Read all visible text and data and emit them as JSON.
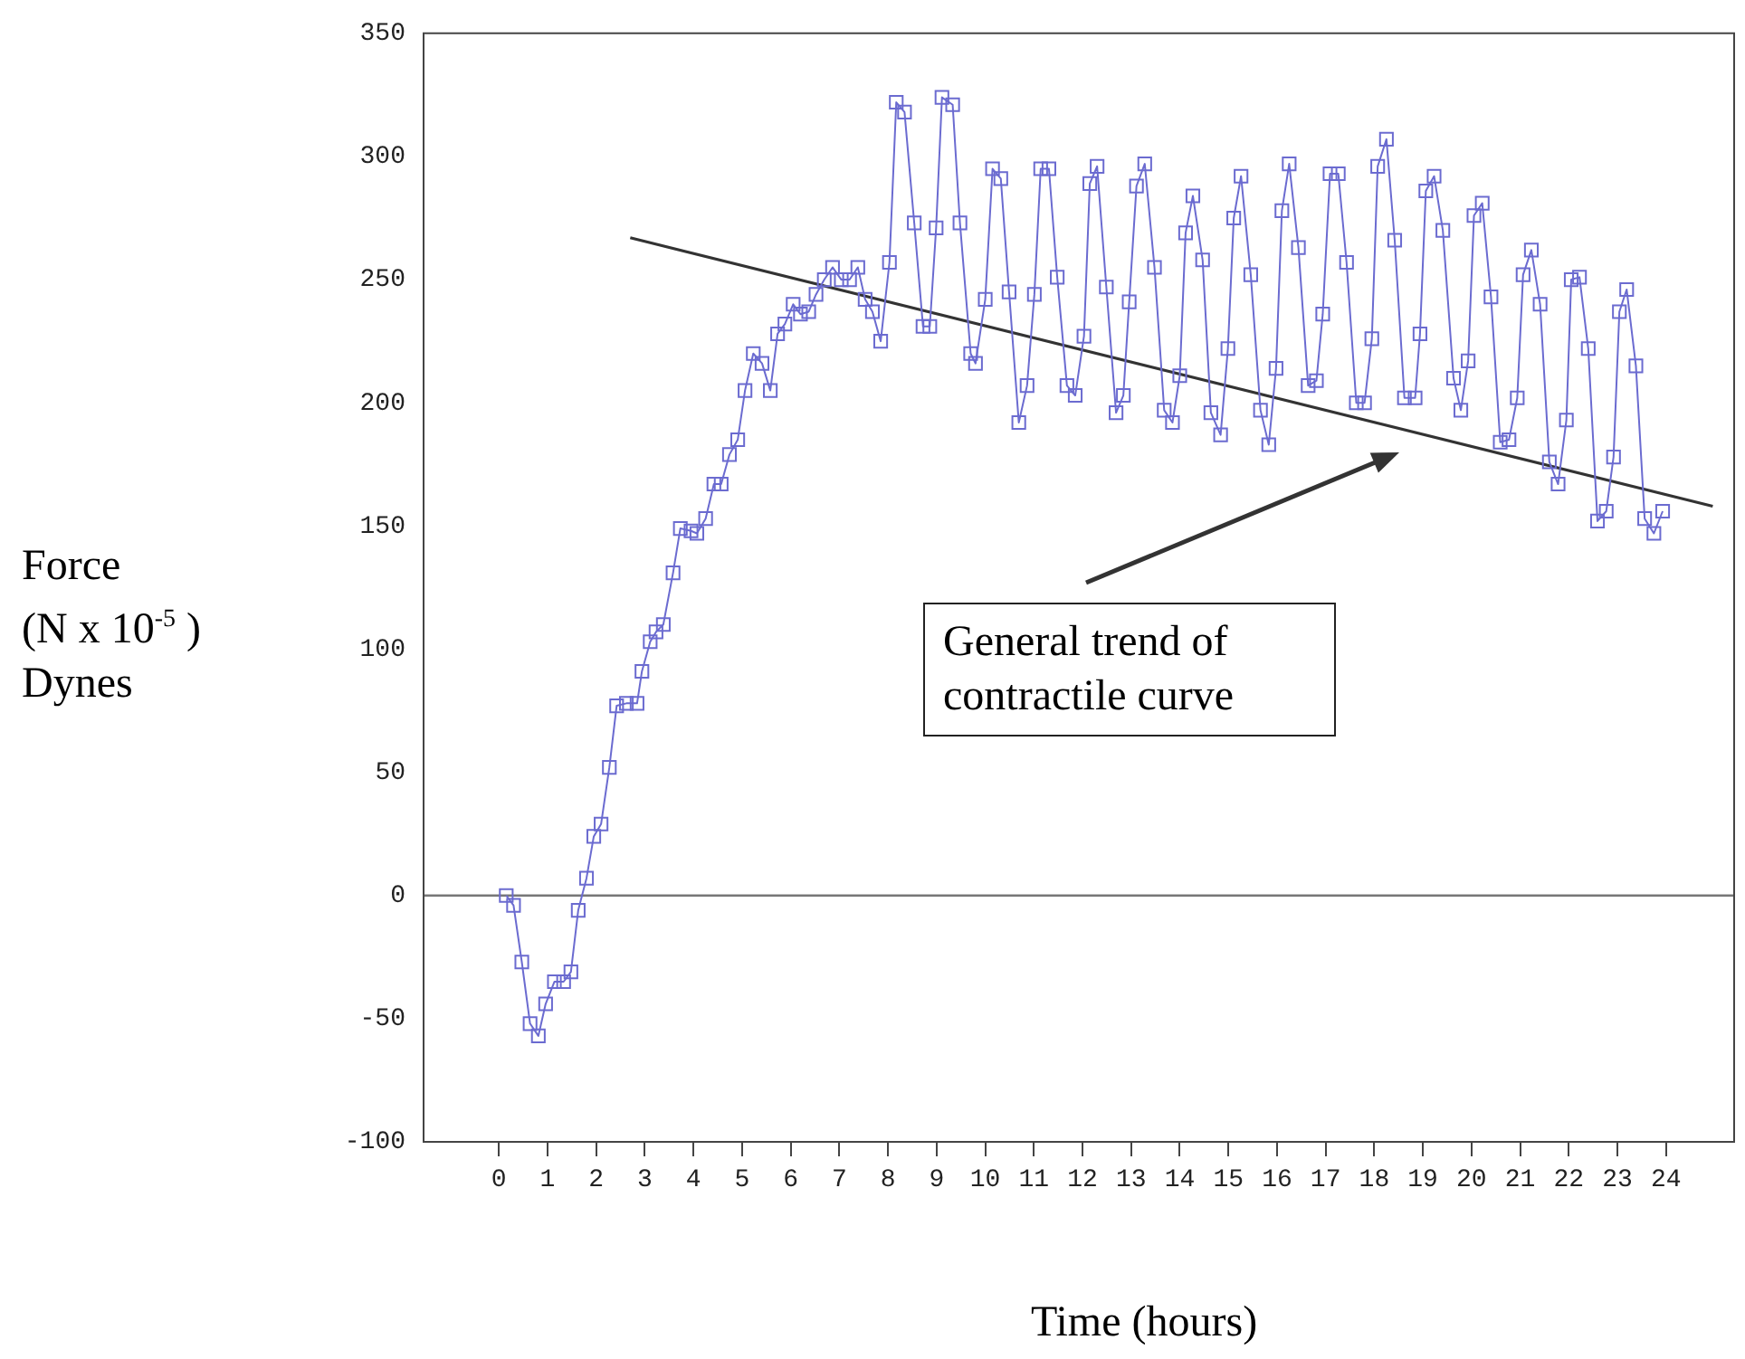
{
  "chart_data": {
    "type": "line",
    "xlabel": "Time (hours)",
    "ylabel": "Force\n(N x 10$^{-5}$ )\nDynes",
    "xlim": [
      -1.55,
      25.4
    ],
    "xticks": [
      0,
      1,
      2,
      3,
      4,
      5,
      6,
      7,
      8,
      9,
      10,
      11,
      12,
      13,
      14,
      15,
      16,
      17,
      18,
      19,
      20,
      21,
      22,
      23,
      24
    ],
    "ylim": [
      -100,
      350
    ],
    "yticks": [
      -100,
      -50,
      0,
      50,
      100,
      150,
      200,
      250,
      300,
      350
    ],
    "grid": false,
    "legend": false,
    "ref_lines": [
      {
        "axis": "y",
        "value": 0,
        "color": "#777777"
      }
    ],
    "annotations": [
      "General trend of contractile curve"
    ],
    "series": [
      {
        "color": "#6b6bd0",
        "marker": "square",
        "x": [
          0.15,
          0.3,
          0.47,
          0.64,
          0.81,
          0.96,
          1.14,
          1.33,
          1.48,
          1.63,
          1.8,
          1.95,
          2.1,
          2.27,
          2.42,
          2.62,
          2.84,
          2.94,
          3.11,
          3.23,
          3.38,
          3.58,
          3.73,
          3.95,
          4.07,
          4.25,
          4.42,
          4.57,
          4.74,
          4.91,
          5.06,
          5.23,
          5.41,
          5.58,
          5.73,
          5.88,
          6.05,
          6.2,
          6.37,
          6.52,
          6.69,
          6.86,
          7.04,
          7.21,
          7.38,
          7.53,
          7.68,
          7.85,
          8.03,
          8.17,
          8.34,
          8.54,
          8.72,
          8.86,
          8.99,
          9.11,
          9.33,
          9.48,
          9.7,
          9.8,
          10.0,
          10.15,
          10.32,
          10.49,
          10.69,
          10.86,
          11.01,
          11.14,
          11.31,
          11.48,
          11.68,
          11.85,
          12.03,
          12.15,
          12.3,
          12.49,
          12.69,
          12.84,
          12.96,
          13.11,
          13.28,
          13.48,
          13.68,
          13.85,
          14.0,
          14.12,
          14.27,
          14.47,
          14.64,
          14.84,
          14.99,
          15.11,
          15.26,
          15.46,
          15.66,
          15.83,
          15.98,
          16.1,
          16.25,
          16.44,
          16.64,
          16.81,
          16.94,
          17.09,
          17.26,
          17.43,
          17.63,
          17.8,
          17.95,
          18.07,
          18.25,
          18.42,
          18.62,
          18.84,
          18.94,
          19.06,
          19.23,
          19.41,
          19.63,
          19.78,
          19.93,
          20.05,
          20.22,
          20.4,
          20.59,
          20.77,
          20.94,
          21.06,
          21.23,
          21.41,
          21.6,
          21.78,
          21.95,
          22.05,
          22.22,
          22.4,
          22.59,
          22.77,
          22.92,
          23.04,
          23.19,
          23.38,
          23.56,
          23.75,
          23.93
        ],
        "values": [
          0,
          -4,
          -27,
          -52,
          -57,
          -44,
          -35,
          -35,
          -31,
          -6,
          7,
          24,
          29,
          52,
          77,
          78,
          78,
          91,
          103,
          107,
          110,
          131,
          149,
          148,
          147,
          153,
          167,
          167,
          179,
          185,
          205,
          220,
          216,
          205,
          228,
          232,
          240,
          236,
          237,
          244,
          250,
          255,
          250,
          250,
          255,
          242,
          237,
          225,
          257,
          322,
          318,
          273,
          231,
          231,
          271,
          324,
          321,
          273,
          220,
          216,
          242,
          295,
          291,
          245,
          192,
          207,
          244,
          295,
          295,
          251,
          207,
          203,
          227,
          289,
          296,
          247,
          196,
          203,
          241,
          288,
          297,
          255,
          197,
          192,
          211,
          269,
          284,
          258,
          196,
          187,
          222,
          275,
          292,
          252,
          197,
          183,
          214,
          278,
          297,
          263,
          207,
          209,
          236,
          293,
          293,
          257,
          200,
          200,
          226,
          296,
          307,
          266,
          202,
          202,
          228,
          286,
          292,
          270,
          210,
          197,
          217,
          276,
          281,
          243,
          184,
          185,
          202,
          252,
          262,
          240,
          176,
          167,
          193,
          250,
          251,
          222,
          152,
          156,
          178,
          237,
          246,
          215,
          153,
          147,
          156
        ]
      },
      {
        "color": "#333333",
        "marker": "none",
        "x": [
          2.7,
          24.96
        ],
        "values": [
          267,
          158
        ]
      }
    ]
  }
}
